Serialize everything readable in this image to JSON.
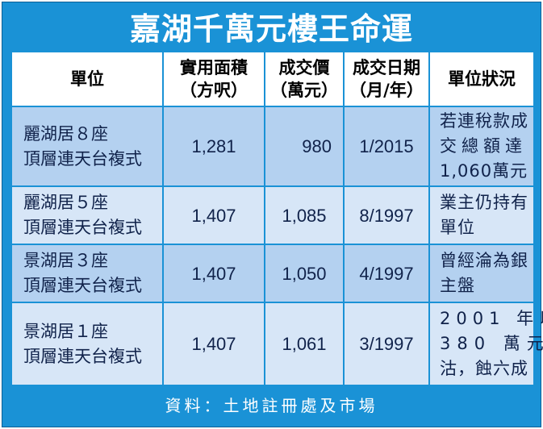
{
  "title": "嘉湖千萬元樓王命運",
  "headers": {
    "unit": "單位",
    "area_1": "實用面積",
    "area_2": "（方呎）",
    "price_1": "成交價",
    "price_2": "（萬元）",
    "date_1": "成交日期",
    "date_2": "（月/年）",
    "status": "單位狀況"
  },
  "rows": [
    {
      "unit_1": "麗湖居８座",
      "unit_2": "頂層連天台複式",
      "area": "1,281",
      "price": "980",
      "date": "1/2015",
      "status_1": "若連稅款成",
      "status_2": "交總額達",
      "status_3": "1,060萬元"
    },
    {
      "unit_1": "麗湖居５座",
      "unit_2": "頂層連天台複式",
      "area": "1,407",
      "price": "1,085",
      "date": "8/1997",
      "status_1": "業主仍持有",
      "status_2": "單位"
    },
    {
      "unit_1": "景湖居３座",
      "unit_2": "頂層連天台複式",
      "area": "1,407",
      "price": "1,050",
      "date": "4/1997",
      "status_1": "曾經淪為銀",
      "status_2": "主盤"
    },
    {
      "unit_1": "景湖居１座",
      "unit_2": "頂層連天台複式",
      "area": "1,407",
      "price": "1,061",
      "date": "3/1997",
      "status_1": "2001 年以",
      "status_2": "380 萬元",
      "status_3": "沽，蝕六成"
    }
  ],
  "source": "資料：土地註冊處及市場"
}
